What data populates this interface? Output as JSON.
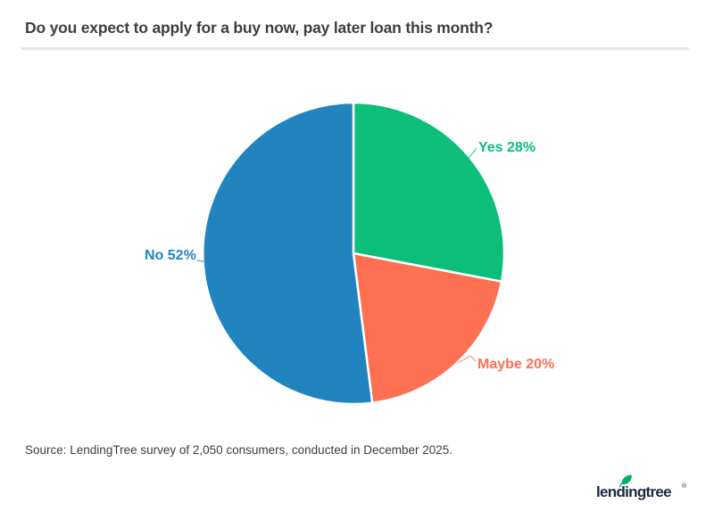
{
  "header": {
    "title": "Do you expect to apply for a buy now, pay later loan this month?"
  },
  "chart_data": {
    "type": "pie",
    "title": "Do you expect to apply for a buy now, pay later loan this month?",
    "start_angle": "12-oclock",
    "direction": "clockwise",
    "labels_outside": true,
    "legend_position": "none",
    "slices": [
      {
        "label": "Yes",
        "value": 28,
        "display": "Yes 28%",
        "color": "#0cbe7a"
      },
      {
        "label": "Maybe",
        "value": 20,
        "display": "Maybe 20%",
        "color": "#fd7052"
      },
      {
        "label": "No",
        "value": 52,
        "display": "No 52%",
        "color": "#2284bf"
      }
    ]
  },
  "footer": {
    "source": "Source: LendingTree survey of 2,050 consumers, conducted in December 2025.",
    "logo_text": "lendingtree",
    "logo_registered_mark": "®",
    "logo_color": "#1c2844",
    "logo_leaf_color": "#00b164"
  },
  "divider_color": "#e4e4e4"
}
